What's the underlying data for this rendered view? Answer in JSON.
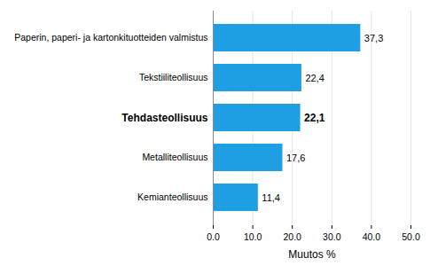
{
  "chart_data": {
    "type": "bar",
    "orientation": "horizontal",
    "categories": [
      "Paperin, paperi- ja kartonkituotteiden valmistus",
      "Tekstiiliteollisuus",
      "Tehdasteollisuus",
      "Metalliteollisuus",
      "Kemianteollisuus"
    ],
    "values": [
      37.3,
      22.4,
      22.1,
      17.6,
      11.4
    ],
    "value_labels": [
      "37,3",
      "22,4",
      "22,1",
      "17,6",
      "11,4"
    ],
    "data_labels": true,
    "color": "#1e9fe3",
    "x_label": "Muutos %",
    "xlim": [
      0,
      50
    ],
    "xticks": [
      {
        "value": 0,
        "label": "0.0"
      },
      {
        "value": 10,
        "label": "10.0"
      },
      {
        "value": 20,
        "label": "20.0"
      },
      {
        "value": 30,
        "label": "30.0"
      },
      {
        "value": 40,
        "label": "40.0"
      },
      {
        "value": 50,
        "label": "50.0"
      }
    ],
    "grid": true
  }
}
